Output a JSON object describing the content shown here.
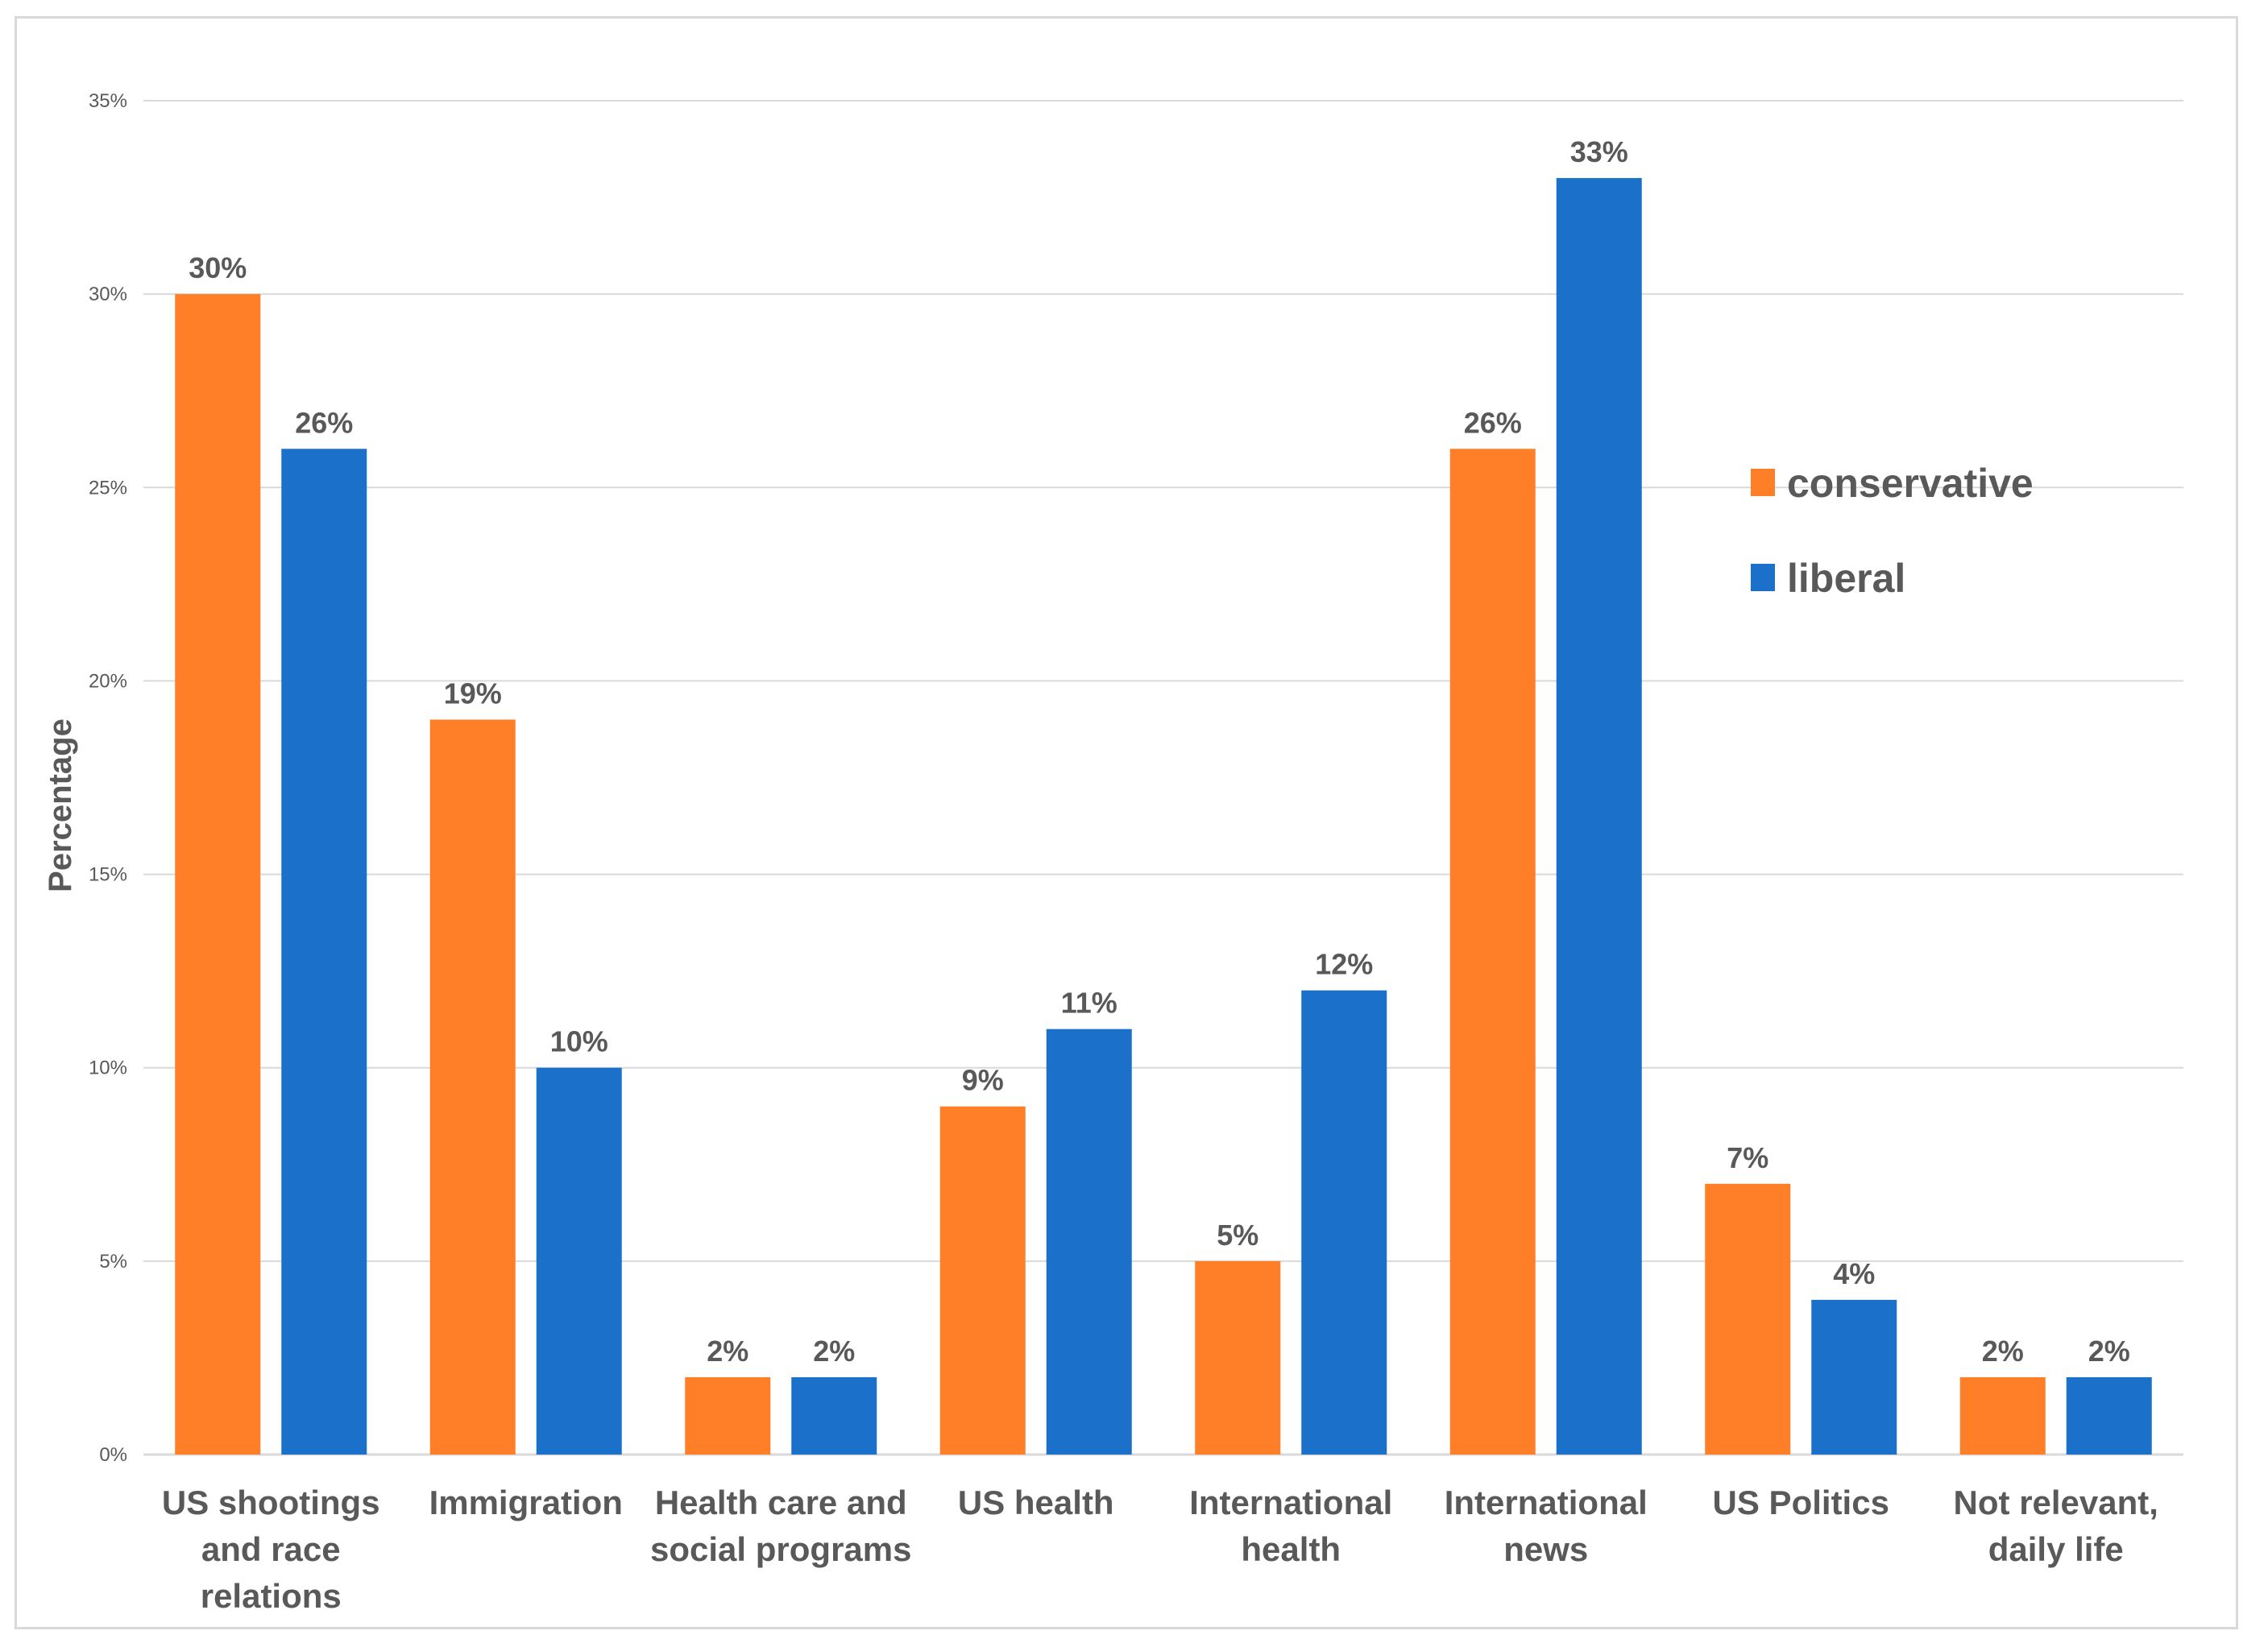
{
  "chart_data": {
    "type": "bar",
    "ylabel": "Percentage",
    "ylim": [
      0,
      35
    ],
    "yticks": [
      0,
      5,
      10,
      15,
      20,
      25,
      30,
      35
    ],
    "ytick_labels": [
      "0%",
      "5%",
      "10%",
      "15%",
      "20%",
      "25%",
      "30%",
      "35%"
    ],
    "grid": true,
    "legend_position": "right, middle-upper",
    "categories": [
      [
        "US shootings",
        "and race",
        "relations"
      ],
      [
        "Immigration"
      ],
      [
        "Health care and",
        "social programs"
      ],
      [
        "US health"
      ],
      [
        "International",
        "health"
      ],
      [
        "International",
        "news"
      ],
      [
        "US Politics"
      ],
      [
        "Not relevant,",
        "daily life"
      ]
    ],
    "series": [
      {
        "name": "conservative",
        "color": "#fe7f27",
        "values": [
          30,
          19,
          2,
          9,
          5,
          26,
          7,
          2
        ],
        "labels": [
          "30%",
          "19%",
          "2%",
          "9%",
          "5%",
          "26%",
          "7%",
          "2%"
        ]
      },
      {
        "name": "liberal",
        "color": "#1b71ca",
        "values": [
          26,
          10,
          2,
          11,
          12,
          33,
          4,
          2
        ],
        "labels": [
          "26%",
          "10%",
          "2%",
          "11%",
          "12%",
          "33%",
          "4%",
          "2%"
        ]
      }
    ],
    "gridline_color": "#d9d9d9"
  }
}
